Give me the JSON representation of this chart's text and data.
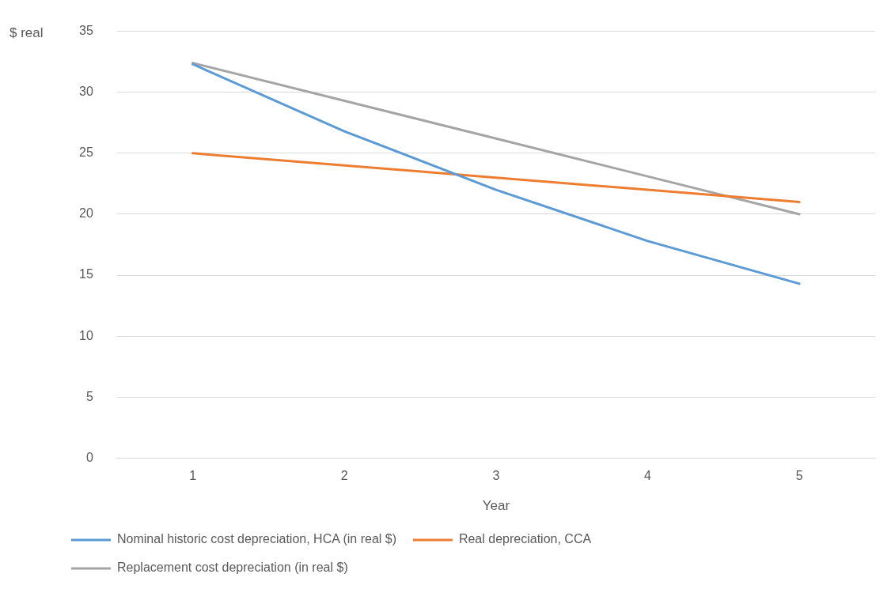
{
  "chart_data": {
    "type": "line",
    "xlabel": "Year",
    "ylabel": "$ real",
    "categories": [
      "1",
      "2",
      "3",
      "4",
      "5"
    ],
    "series": [
      {
        "name": "Nominal historic cost depreciation, HCA (in real $)",
        "color": "#5b9bd5",
        "values": [
          32.3,
          26.8,
          22.0,
          17.8,
          14.3
        ]
      },
      {
        "name": "Real depreciation, CCA",
        "color": "#ed7d31",
        "values": [
          25,
          24,
          23,
          22,
          21
        ]
      },
      {
        "name": "Replacement cost depreciation (in real $)",
        "color": "#a5a5a5",
        "values": [
          32.4,
          29.3,
          26.2,
          23.1,
          20.0
        ]
      }
    ],
    "ylim": [
      0,
      35
    ],
    "yticks": [
      0,
      5,
      10,
      15,
      20,
      25,
      30,
      35
    ],
    "grid": "y",
    "legend": "bottom",
    "marker": "none",
    "line_style": "solid"
  }
}
